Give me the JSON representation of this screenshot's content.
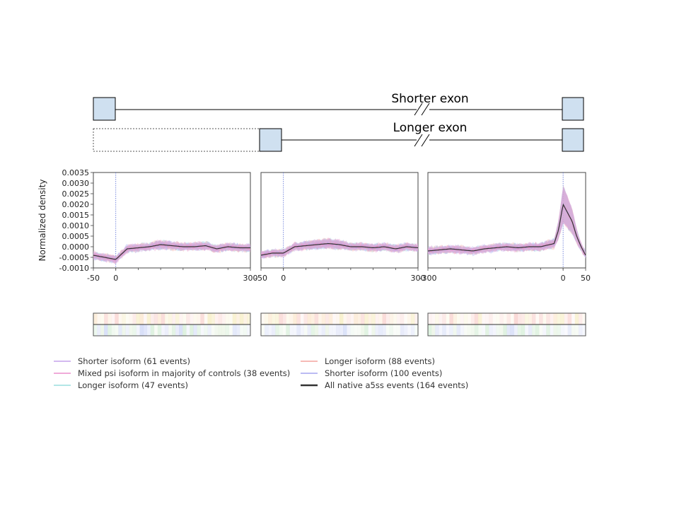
{
  "schematic": {
    "shorter_label": "Shorter exon",
    "longer_label": "Longer exon"
  },
  "colors": {
    "shorter_isoform_61": "#c8a8ec",
    "mixed_psi": "#ec96cf",
    "longer_isoform_47": "#9fe0e0",
    "longer_isoform_88": "#f4a9a4",
    "shorter_isoform_100": "#aaaaf0",
    "all_native": "#333333",
    "exon_fill": "#cfe0f0",
    "marker_line": "#5a6fd6"
  },
  "legend": [
    {
      "label": "Shorter isoform (61 events)",
      "color": "#c8a8ec",
      "column": 1
    },
    {
      "label": "Mixed psi isoform in majority of controls (38 events)",
      "color": "#ec96cf",
      "column": 1
    },
    {
      "label": "Longer isoform (47 events)",
      "color": "#9fe0e0",
      "column": 1
    },
    {
      "label": "Longer isoform (88 events)",
      "color": "#f4a9a4",
      "column": 2
    },
    {
      "label": "Shorter isoform (100 events)",
      "color": "#aaaaf0",
      "column": 2
    },
    {
      "label": "All native a5ss events (164 events)",
      "color": "#333333",
      "column": 2
    }
  ],
  "chart_data": [
    {
      "type": "line",
      "panel": "upstream exon end",
      "ylabel": "Normalized density",
      "ylim": [
        -0.001,
        0.0035
      ],
      "yticks": [
        "0.0035",
        "0.0030",
        "0.0025",
        "0.0020",
        "0.0015",
        "0.0010",
        "0.0005",
        "0.0000",
        "-0.0005",
        "-0.0010"
      ],
      "xlim": [
        -50,
        300
      ],
      "xtick_labels": [
        "-50",
        "0",
        "300"
      ],
      "xtick_values": [
        -50,
        0,
        300
      ],
      "marker_x": 0,
      "x": [
        -50,
        -25,
        0,
        25,
        50,
        75,
        100,
        125,
        150,
        175,
        200,
        225,
        250,
        275,
        300
      ],
      "series": [
        {
          "name": "All native a5ss events (164 events)",
          "values": [
            -0.0004,
            -0.0005,
            -0.0006,
            -0.0001,
            -5e-05,
            0.0,
            0.0001,
            5e-05,
            0.0,
            0.0,
            5e-05,
            -0.0001,
            0.0,
            -5e-05,
            -5e-05
          ]
        }
      ]
    },
    {
      "type": "line",
      "panel": "alternative 5' splice site",
      "ylim": [
        -0.001,
        0.0035
      ],
      "xlim": [
        -50,
        300
      ],
      "xtick_labels": [
        "-50",
        "0",
        "300"
      ],
      "xtick_values": [
        -50,
        0,
        300
      ],
      "marker_x": 0,
      "x": [
        -50,
        -25,
        0,
        25,
        50,
        75,
        100,
        125,
        150,
        175,
        200,
        225,
        250,
        275,
        300
      ],
      "series": [
        {
          "name": "All native a5ss events (164 events)",
          "values": [
            -0.0004,
            -0.0003,
            -0.0003,
            0.0,
            5e-05,
            0.0001,
            0.00015,
            0.0001,
            0.0,
            0.0,
            -5e-05,
            0.0,
            -0.0001,
            0.0,
            -5e-05
          ]
        }
      ]
    },
    {
      "type": "line",
      "panel": "downstream exon start",
      "ylim": [
        -0.001,
        0.0035
      ],
      "xlim": [
        -300,
        50
      ],
      "xtick_labels": [
        "-300",
        "0",
        "50"
      ],
      "xtick_values": [
        -300,
        0,
        50
      ],
      "marker_x": 0,
      "x": [
        -300,
        -275,
        -250,
        -225,
        -200,
        -175,
        -150,
        -125,
        -100,
        -75,
        -50,
        -40,
        -30,
        -20,
        -10,
        0,
        10,
        20,
        30,
        40,
        50
      ],
      "series": [
        {
          "name": "All native a5ss events (164 events)",
          "values": [
            -0.0002,
            -0.00015,
            -0.0001,
            -0.00015,
            -0.0002,
            -0.0001,
            -5e-05,
            0.0,
            -5e-05,
            0.0,
            0.0,
            5e-05,
            0.0001,
            0.00015,
            0.0008,
            0.002,
            0.0016,
            0.0012,
            0.0005,
            0.0,
            -0.0004
          ]
        }
      ]
    }
  ]
}
